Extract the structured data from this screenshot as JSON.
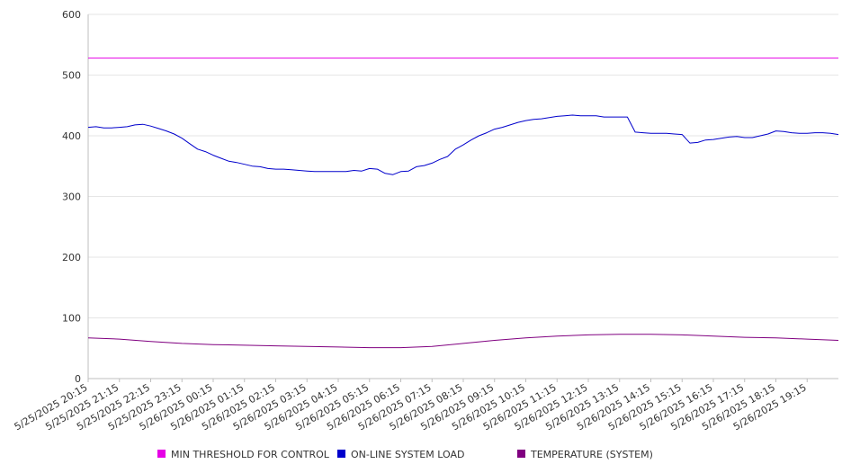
{
  "chart_data": {
    "type": "line",
    "title": "",
    "xlabel": "",
    "ylabel": "",
    "ylim": [
      0,
      600
    ],
    "yticks": [
      0,
      100,
      200,
      300,
      400,
      500,
      600
    ],
    "grid": "horizontal",
    "legend_position": "bottom",
    "x_tick_labels": [
      "5/25/2025 20:15",
      "5/25/2025 21:15",
      "5/25/2025 22:15",
      "5/25/2025 23:15",
      "5/26/2025 00:15",
      "5/26/2025 01:15",
      "5/26/2025 02:15",
      "5/26/2025 03:15",
      "5/26/2025 04:15",
      "5/26/2025 05:15",
      "5/26/2025 06:15",
      "5/26/2025 07:15",
      "5/26/2025 08:15",
      "5/26/2025 09:15",
      "5/26/2025 10:15",
      "5/26/2025 11:15",
      "5/26/2025 12:15",
      "5/26/2025 13:15",
      "5/26/2025 14:15",
      "5/26/2025 15:15",
      "5/26/2025 16:15",
      "5/26/2025 17:15",
      "5/26/2025 18:15",
      "5/26/2025 19:15"
    ],
    "x_end": "5/26/2025 20:15",
    "series": [
      {
        "name": "MIN THRESHOLD FOR CONTROL",
        "color": "#e600e6",
        "points": [
          [
            "5/25/2025 20:15",
            528
          ],
          [
            "5/26/2025 20:15",
            528
          ]
        ]
      },
      {
        "name": "ON-LINE SYSTEM LOAD",
        "color": "#0000cc",
        "points": [
          [
            "5/25/2025 20:15",
            414
          ],
          [
            "5/25/2025 20:30",
            415
          ],
          [
            "5/25/2025 20:45",
            413
          ],
          [
            "5/25/2025 21:00",
            413
          ],
          [
            "5/25/2025 21:15",
            414
          ],
          [
            "5/25/2025 21:30",
            415
          ],
          [
            "5/25/2025 21:45",
            418
          ],
          [
            "5/25/2025 22:00",
            419
          ],
          [
            "5/25/2025 22:15",
            416
          ],
          [
            "5/25/2025 22:30",
            412
          ],
          [
            "5/25/2025 22:45",
            408
          ],
          [
            "5/25/2025 23:00",
            403
          ],
          [
            "5/25/2025 23:15",
            396
          ],
          [
            "5/25/2025 23:30",
            387
          ],
          [
            "5/25/2025 23:45",
            378
          ],
          [
            "5/26/2025 00:00",
            374
          ],
          [
            "5/26/2025 00:15",
            368
          ],
          [
            "5/26/2025 00:30",
            363
          ],
          [
            "5/26/2025 00:45",
            358
          ],
          [
            "5/26/2025 01:00",
            356
          ],
          [
            "5/26/2025 01:15",
            353
          ],
          [
            "5/26/2025 01:30",
            350
          ],
          [
            "5/26/2025 01:45",
            349
          ],
          [
            "5/26/2025 02:00",
            346
          ],
          [
            "5/26/2025 02:15",
            345
          ],
          [
            "5/26/2025 02:30",
            345
          ],
          [
            "5/26/2025 02:45",
            344
          ],
          [
            "5/26/2025 03:00",
            343
          ],
          [
            "5/26/2025 03:15",
            342
          ],
          [
            "5/26/2025 03:30",
            341
          ],
          [
            "5/26/2025 03:45",
            341
          ],
          [
            "5/26/2025 04:00",
            341
          ],
          [
            "5/26/2025 04:15",
            341
          ],
          [
            "5/26/2025 04:30",
            341
          ],
          [
            "5/26/2025 04:45",
            343
          ],
          [
            "5/26/2025 05:00",
            342
          ],
          [
            "5/26/2025 05:15",
            346
          ],
          [
            "5/26/2025 05:30",
            345
          ],
          [
            "5/26/2025 05:45",
            338
          ],
          [
            "5/26/2025 06:00",
            336
          ],
          [
            "5/26/2025 06:15",
            341
          ],
          [
            "5/26/2025 06:30",
            342
          ],
          [
            "5/26/2025 06:45",
            349
          ],
          [
            "5/26/2025 07:00",
            351
          ],
          [
            "5/26/2025 07:15",
            355
          ],
          [
            "5/26/2025 07:30",
            361
          ],
          [
            "5/26/2025 07:45",
            366
          ],
          [
            "5/26/2025 08:00",
            378
          ],
          [
            "5/26/2025 08:15",
            385
          ],
          [
            "5/26/2025 08:30",
            393
          ],
          [
            "5/26/2025 08:45",
            400
          ],
          [
            "5/26/2025 09:00",
            405
          ],
          [
            "5/26/2025 09:15",
            411
          ],
          [
            "5/26/2025 09:30",
            414
          ],
          [
            "5/26/2025 09:45",
            418
          ],
          [
            "5/26/2025 10:00",
            422
          ],
          [
            "5/26/2025 10:15",
            425
          ],
          [
            "5/26/2025 10:30",
            427
          ],
          [
            "5/26/2025 10:45",
            428
          ],
          [
            "5/26/2025 11:00",
            430
          ],
          [
            "5/26/2025 11:15",
            432
          ],
          [
            "5/26/2025 11:30",
            433
          ],
          [
            "5/26/2025 11:45",
            434
          ],
          [
            "5/26/2025 12:00",
            433
          ],
          [
            "5/26/2025 12:15",
            433
          ],
          [
            "5/26/2025 12:30",
            433
          ],
          [
            "5/26/2025 12:45",
            431
          ],
          [
            "5/26/2025 13:00",
            431
          ],
          [
            "5/26/2025 13:15",
            431
          ],
          [
            "5/26/2025 13:30",
            431
          ],
          [
            "5/26/2025 13:45",
            406
          ],
          [
            "5/26/2025 14:00",
            405
          ],
          [
            "5/26/2025 14:15",
            404
          ],
          [
            "5/26/2025 14:30",
            404
          ],
          [
            "5/26/2025 14:45",
            404
          ],
          [
            "5/26/2025 15:00",
            403
          ],
          [
            "5/26/2025 15:15",
            402
          ],
          [
            "5/26/2025 15:30",
            388
          ],
          [
            "5/26/2025 15:45",
            389
          ],
          [
            "5/26/2025 16:00",
            393
          ],
          [
            "5/26/2025 16:15",
            394
          ],
          [
            "5/26/2025 16:30",
            396
          ],
          [
            "5/26/2025 16:45",
            398
          ],
          [
            "5/26/2025 17:00",
            399
          ],
          [
            "5/26/2025 17:15",
            397
          ],
          [
            "5/26/2025 17:30",
            397
          ],
          [
            "5/26/2025 17:45",
            400
          ],
          [
            "5/26/2025 18:00",
            403
          ],
          [
            "5/26/2025 18:15",
            408
          ],
          [
            "5/26/2025 18:30",
            407
          ],
          [
            "5/26/2025 18:45",
            405
          ],
          [
            "5/26/2025 19:00",
            404
          ],
          [
            "5/26/2025 19:15",
            404
          ],
          [
            "5/26/2025 19:30",
            405
          ],
          [
            "5/26/2025 19:45",
            405
          ],
          [
            "5/26/2025 20:00",
            404
          ],
          [
            "5/26/2025 20:15",
            402
          ]
        ]
      },
      {
        "name": "TEMPERATURE (SYSTEM)",
        "color": "#800080",
        "points": [
          [
            "5/25/2025 20:15",
            67
          ],
          [
            "5/25/2025 21:15",
            65
          ],
          [
            "5/25/2025 22:15",
            61
          ],
          [
            "5/25/2025 23:15",
            58
          ],
          [
            "5/26/2025 00:15",
            56
          ],
          [
            "5/26/2025 01:15",
            55
          ],
          [
            "5/26/2025 02:15",
            54
          ],
          [
            "5/26/2025 03:15",
            53
          ],
          [
            "5/26/2025 04:15",
            52
          ],
          [
            "5/26/2025 05:15",
            51
          ],
          [
            "5/26/2025 06:15",
            51
          ],
          [
            "5/26/2025 07:15",
            53
          ],
          [
            "5/26/2025 08:15",
            58
          ],
          [
            "5/26/2025 09:15",
            63
          ],
          [
            "5/26/2025 10:15",
            67
          ],
          [
            "5/26/2025 11:15",
            70
          ],
          [
            "5/26/2025 12:15",
            72
          ],
          [
            "5/26/2025 13:15",
            73
          ],
          [
            "5/26/2025 14:15",
            73
          ],
          [
            "5/26/2025 15:15",
            72
          ],
          [
            "5/26/2025 16:15",
            70
          ],
          [
            "5/26/2025 17:15",
            68
          ],
          [
            "5/26/2025 18:15",
            67
          ],
          [
            "5/26/2025 19:15",
            65
          ],
          [
            "5/26/2025 20:15",
            63
          ]
        ]
      }
    ]
  }
}
